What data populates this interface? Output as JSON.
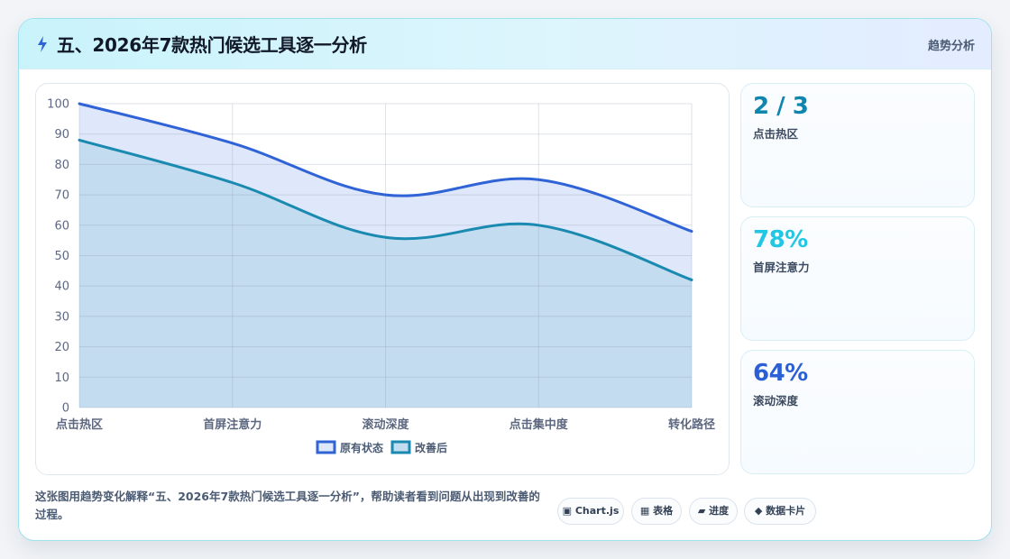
{
  "header": {
    "icon": "bolt-icon",
    "title": "五、2026年7款热门候选工具逐一分析",
    "tag": "趋势分析"
  },
  "chart_data": {
    "type": "area",
    "categories": [
      "点击热区",
      "首屏注意力",
      "滚动深度",
      "点击集中度",
      "转化路径"
    ],
    "series": [
      {
        "name": "原有状态",
        "values": [
          100,
          87,
          70,
          75,
          58
        ],
        "color": "#2f63d6",
        "fill": "#dfe8fb"
      },
      {
        "name": "改善后",
        "values": [
          88,
          74,
          56,
          60,
          42
        ],
        "color": "#1a8ab0",
        "fill": "#c3dcf0"
      }
    ],
    "ylim": [
      0,
      100
    ],
    "yticks": [
      0,
      10,
      20,
      30,
      40,
      50,
      60,
      70,
      80,
      90,
      100
    ],
    "grid": true,
    "legend": "bottom",
    "title": "",
    "xlabel": "",
    "ylabel": ""
  },
  "stats": [
    {
      "value": "2 / 3",
      "label": "点击热区",
      "color": "#0e86ad"
    },
    {
      "value": "78%",
      "label": "首屏注意力",
      "color": "#22c7e3"
    },
    {
      "value": "64%",
      "label": "滚动深度",
      "color": "#2a5fd6"
    }
  ],
  "caption": "这张图用趋势变化解释“五、2026年7款热门候选工具逐一分析”，帮助读者看到问题从出现到改善的过程。",
  "chips": [
    {
      "icon": "square-icon",
      "glyph": "▣",
      "label": "Chart.js"
    },
    {
      "icon": "table-icon",
      "glyph": "▦",
      "label": "表格"
    },
    {
      "icon": "progress-icon",
      "glyph": "▰",
      "label": "进度"
    },
    {
      "icon": "diamond-icon",
      "glyph": "◆",
      "label": "数据卡片"
    }
  ]
}
